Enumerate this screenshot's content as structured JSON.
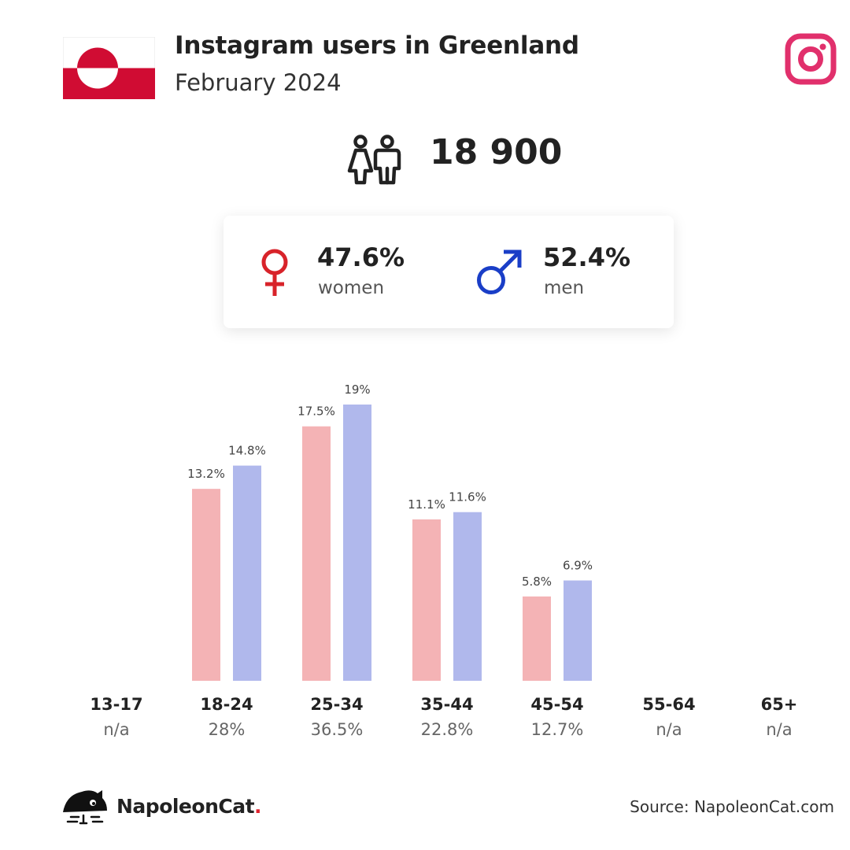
{
  "header": {
    "title": "Instagram users in Greenland",
    "subtitle": "February 2024"
  },
  "icons": {
    "flag": "greenland-flag-icon",
    "platform": "instagram-icon",
    "users": "people-icon",
    "female": "female-symbol-icon",
    "male": "male-symbol-icon",
    "logo": "napoleoncat-logo-icon"
  },
  "total_users": "18 900",
  "gender": {
    "women": {
      "pct": "47.6%",
      "label": "women"
    },
    "men": {
      "pct": "52.4%",
      "label": "men"
    }
  },
  "colors": {
    "women": "#f4b3b5",
    "men": "#b0b8ec",
    "female_symbol": "#d8232a",
    "male_symbol": "#1a3ec7",
    "instagram": "#e1306c",
    "flag_red": "#d00c33"
  },
  "chart_data": {
    "type": "bar",
    "categories": [
      "13-17",
      "18-24",
      "25-34",
      "35-44",
      "45-54",
      "55-64",
      "65+"
    ],
    "category_share": [
      "n/a",
      "28%",
      "36.5%",
      "22.8%",
      "12.7%",
      "n/a",
      "n/a"
    ],
    "series": [
      {
        "name": "women",
        "values": [
          null,
          13.2,
          17.5,
          11.1,
          5.8,
          null,
          null
        ],
        "labels": [
          "",
          "13.2%",
          "17.5%",
          "11.1%",
          "5.8%",
          "",
          ""
        ]
      },
      {
        "name": "men",
        "values": [
          null,
          14.8,
          19,
          11.6,
          6.9,
          null,
          null
        ],
        "labels": [
          "",
          "14.8%",
          "19%",
          "11.6%",
          "6.9%",
          "",
          ""
        ]
      }
    ],
    "ylim": [
      0,
      19
    ],
    "grid": false
  },
  "footer": {
    "brand": "NapoleonCat",
    "brand_dot": ".",
    "source": "Source: NapoleonCat.com"
  }
}
